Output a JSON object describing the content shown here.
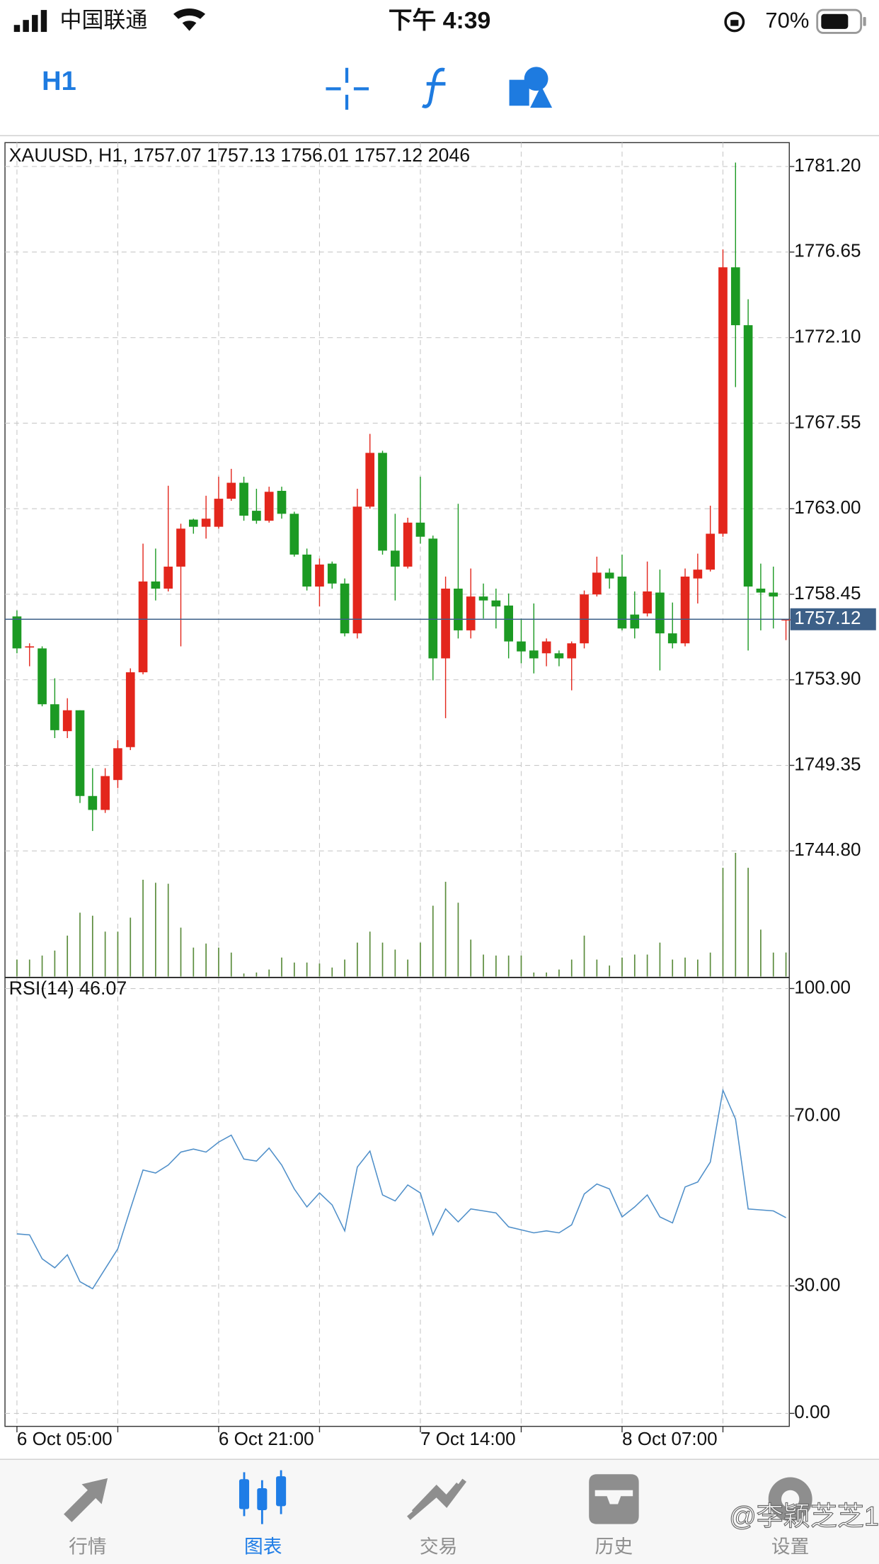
{
  "status_bar": {
    "carrier": "中国联通",
    "time": "下午 4:39",
    "battery": "70%"
  },
  "toolbar": {
    "timeframe": "H1"
  },
  "chart_data": [
    {
      "type": "candlestick",
      "title": "XAUUSD, H1, 1757.07 1757.13 1756.01 1757.12 2046",
      "categories": [
        "6 Oct 05:00",
        null,
        null,
        null,
        null,
        null,
        null,
        null,
        null,
        null,
        null,
        null,
        null,
        null,
        null,
        null,
        "6 Oct 21:00",
        null,
        null,
        null,
        null,
        null,
        null,
        null,
        null,
        null,
        null,
        null,
        null,
        null,
        null,
        null,
        "7 Oct 14:00",
        null,
        null,
        null,
        null,
        null,
        null,
        null,
        null,
        null,
        null,
        null,
        null,
        null,
        null,
        null,
        "8 Oct 07:00",
        null,
        null,
        null,
        null,
        null,
        null,
        null,
        null,
        null,
        null,
        null,
        null,
        null
      ],
      "open": [
        1757.27,
        1755.68,
        1755.57,
        1752.6,
        1751.17,
        1752.28,
        1747.72,
        1746.98,
        1748.57,
        1750.32,
        1754.3,
        1759.13,
        1758.75,
        1759.92,
        1762.42,
        1762.04,
        1762.04,
        1763.53,
        1764.38,
        1762.89,
        1762.36,
        1763.95,
        1762.73,
        1760.56,
        1758.86,
        1760.08,
        1759.02,
        1756.37,
        1763.11,
        1765.97,
        1760.77,
        1759.92,
        1762.26,
        1761.41,
        1755.04,
        1758.75,
        1756.53,
        1758.33,
        1758.12,
        1757.85,
        1755.94,
        1755.46,
        1755.31,
        1755.31,
        1755.04,
        1755.84,
        1758.44,
        1759.6,
        1759.39,
        1757.37,
        1757.43,
        1758.54,
        1756.37,
        1755.84,
        1759.29,
        1759.76,
        1761.67,
        1775.84,
        1772.76,
        1758.75,
        1758.54,
        1757.07
      ],
      "high": [
        1757.59,
        1755.84,
        1755.68,
        1753.98,
        1752.92,
        1752.28,
        1749.2,
        1749.2,
        1750.69,
        1754.51,
        1761.14,
        1760.88,
        1764.22,
        1762.2,
        1762.47,
        1763.69,
        1764.7,
        1765.12,
        1764.7,
        1764.06,
        1764.17,
        1764.17,
        1762.84,
        1760.88,
        1760.35,
        1760.19,
        1759.29,
        1764.06,
        1766.98,
        1766.08,
        1762.73,
        1762.52,
        1764.7,
        1761.57,
        1759.39,
        1763.26,
        1759.82,
        1759.02,
        1758.75,
        1758.49,
        1757.16,
        1757.96,
        1756.1,
        1755.46,
        1755.94,
        1758.65,
        1760.45,
        1759.82,
        1760.56,
        1758.6,
        1760.19,
        1759.76,
        1758.01,
        1759.82,
        1760.61,
        1763.16,
        1776.79,
        1781.41,
        1774.14,
        1760.08,
        1759.92,
        1757.13
      ],
      "low": [
        1755.31,
        1754.62,
        1752.49,
        1750.8,
        1750.8,
        1747.35,
        1745.86,
        1746.82,
        1748.14,
        1750.16,
        1754.19,
        1758.12,
        1758.6,
        1755.68,
        1761.67,
        1761.41,
        1761.94,
        1763.42,
        1762.36,
        1762.2,
        1762.26,
        1762.47,
        1760.45,
        1758.65,
        1757.8,
        1758.75,
        1756.21,
        1756.1,
        1763.0,
        1760.56,
        1758.12,
        1759.82,
        1761.14,
        1753.87,
        1751.86,
        1756.1,
        1756.1,
        1757.16,
        1756.63,
        1755.04,
        1754.78,
        1754.24,
        1754.62,
        1754.62,
        1753.34,
        1755.57,
        1758.33,
        1758.75,
        1756.53,
        1756.1,
        1757.27,
        1754.4,
        1755.57,
        1755.68,
        1757.96,
        1759.66,
        1761.51,
        1769.47,
        1755.46,
        1756.53,
        1756.63,
        1756.01
      ],
      "close": [
        1755.57,
        1755.68,
        1752.6,
        1751.22,
        1752.28,
        1747.72,
        1746.98,
        1748.78,
        1750.26,
        1754.3,
        1759.13,
        1758.75,
        1759.92,
        1761.94,
        1762.04,
        1762.47,
        1763.53,
        1764.38,
        1762.63,
        1762.36,
        1763.9,
        1762.73,
        1760.56,
        1758.86,
        1760.03,
        1759.02,
        1756.37,
        1763.11,
        1765.97,
        1760.77,
        1759.92,
        1762.26,
        1761.51,
        1755.04,
        1758.75,
        1756.53,
        1758.33,
        1758.12,
        1757.8,
        1755.94,
        1755.41,
        1755.04,
        1755.94,
        1755.04,
        1755.84,
        1758.44,
        1759.6,
        1759.29,
        1756.63,
        1756.63,
        1758.6,
        1756.37,
        1755.84,
        1759.39,
        1759.76,
        1761.67,
        1775.84,
        1772.76,
        1758.86,
        1758.54,
        1758.33,
        1757.12
      ],
      "volume": [
        1445,
        1445,
        1785,
        2210,
        3485,
        5440,
        5185,
        3825,
        3825,
        5015,
        8245,
        7990,
        7905,
        4165,
        2465,
        2805,
        2465,
        2040,
        255,
        340,
        595,
        1615,
        1190,
        1190,
        1105,
        765,
        1445,
        2890,
        3825,
        2890,
        2295,
        1445,
        2890,
        6035,
        8075,
        6290,
        3145,
        1870,
        1785,
        1785,
        1785,
        340,
        340,
        595,
        1445,
        3485,
        1445,
        935,
        1615,
        1870,
        1870,
        2890,
        1445,
        1615,
        1445,
        2040,
        9265,
        10540,
        9265,
        3995,
        2040,
        2046
      ],
      "up_color": "#e3261c",
      "down_color": "#1c9a23",
      "volume_color": "#5b8c3c",
      "price_line_color": "#3d6088",
      "ylim": [
        1738.12,
        1782.47
      ],
      "yticks": [
        {
          "value": 1781.2,
          "label": "1781.20"
        },
        1776.65,
        {
          "value": 1772.1,
          "label": "1772.10"
        },
        1767.55,
        {
          "value": 1763,
          "label": "1763.00"
        },
        1758.45,
        {
          "value": 1753.9,
          "label": "1753.90"
        },
        1749.35,
        {
          "value": 1744.8,
          "label": "1744.80"
        }
      ],
      "grid": true
    },
    {
      "type": "line",
      "title": "RSI(14) 46.07",
      "color": "#4f8fc9",
      "values": [
        42.25,
        42.02,
        36.38,
        34.27,
        37.32,
        30.99,
        29.34,
        34.04,
        38.73,
        48.12,
        57.28,
        56.57,
        58.45,
        61.5,
        62.21,
        61.5,
        63.85,
        65.49,
        59.86,
        59.39,
        62.44,
        58.45,
        52.82,
        48.59,
        51.88,
        49.06,
        42.96,
        57.98,
        61.74,
        51.41,
        50.0,
        53.76,
        51.88,
        42.02,
        48.12,
        45.07,
        48.12,
        47.65,
        47.18,
        43.9,
        43.19,
        42.49,
        42.96,
        42.49,
        44.37,
        51.64,
        53.99,
        52.82,
        46.24,
        48.59,
        51.41,
        46.24,
        44.84,
        53.29,
        54.46,
        59.15,
        76.06,
        69.25,
        48.12,
        47.89,
        47.65,
        46.07
      ],
      "ylim": [
        -3.05,
        102.35
      ],
      "yticks": [
        {
          "value": 100,
          "label": "100.00"
        },
        {
          "value": 70,
          "label": "70.00"
        },
        {
          "value": 30,
          "label": "30.00"
        },
        {
          "value": 0,
          "label": "0.00"
        }
      ],
      "grid": true
    }
  ],
  "tab_bar": {
    "items": [
      "行情",
      "图表",
      "交易",
      "历史",
      "设置"
    ]
  },
  "watermark": "@李颖芝芝1"
}
